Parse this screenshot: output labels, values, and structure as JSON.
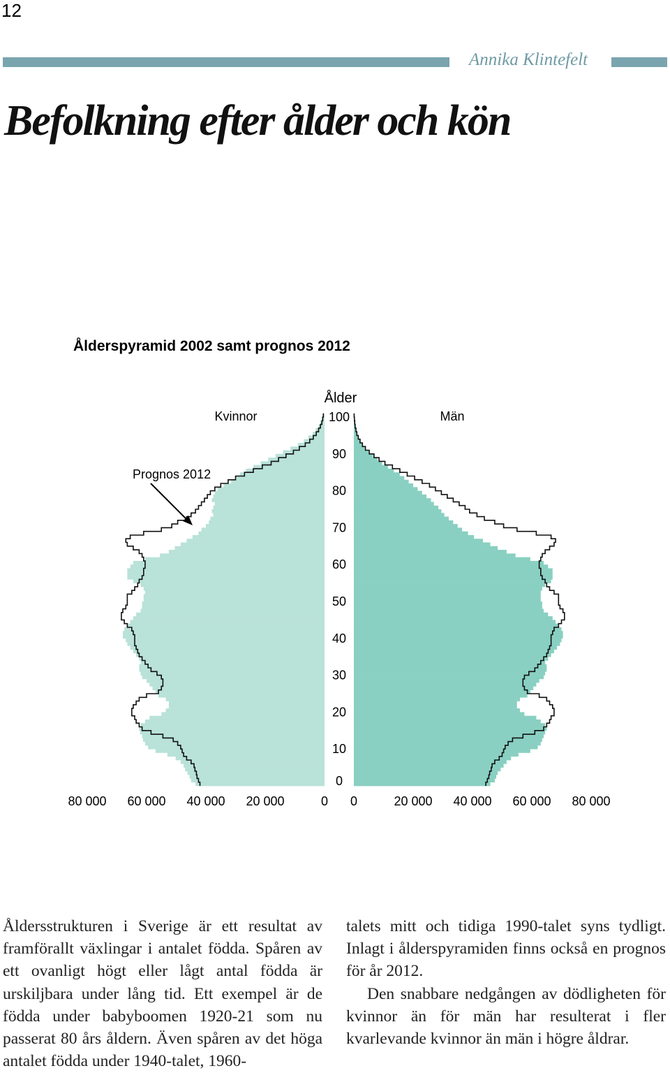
{
  "header": {
    "page_number": "12",
    "author": "Annika Klintefelt",
    "accent_color": "#7aa5ae"
  },
  "article": {
    "title": "Befolkning efter ålder och kön"
  },
  "chart_data": {
    "type": "population-pyramid",
    "title": "Ålderspyramid 2002 samt prognos 2012",
    "y_axis_label": "Ålder",
    "left_label": "Kvinnor",
    "right_label": "Män",
    "annotation": "Prognos 2012",
    "y_ticks": [
      "0",
      "10",
      "20",
      "30",
      "40",
      "50",
      "60",
      "70",
      "80",
      "90",
      "100"
    ],
    "x_ticks_left": [
      "80 000",
      "60 000",
      "40 000",
      "20 000",
      "0"
    ],
    "x_ticks_right": [
      "0",
      "20 000",
      "40 000",
      "60 000",
      "80 000"
    ],
    "x_range": [
      0,
      80000
    ],
    "y_range": [
      0,
      100
    ],
    "colors": {
      "kvinnor": "#b9e2d8",
      "man": "#89d0c2",
      "prognos_outline": "#111111"
    },
    "series": [
      {
        "name": "Kvinnor",
        "values": [
          43500,
          45000,
          45500,
          46200,
          47000,
          47500,
          48500,
          50200,
          53000,
          57000,
          59500,
          60500,
          61200,
          61500,
          62200,
          62500,
          62000,
          60500,
          59000,
          55000,
          53500,
          52500,
          52500,
          53500,
          56000,
          57000,
          58000,
          59000,
          60000,
          61500,
          62000,
          62500,
          62500,
          62000,
          62500,
          63500,
          64500,
          65500,
          66500,
          67000,
          68000,
          68000,
          67500,
          66500,
          65500,
          64500,
          63500,
          62000,
          61500,
          61500,
          61000,
          61000,
          60500,
          61000,
          62000,
          64500,
          66500,
          66500,
          66500,
          65500,
          64500,
          60500,
          55500,
          52500,
          50500,
          48500,
          46500,
          44500,
          42500,
          41500,
          40000,
          39000,
          38500,
          37500,
          38000,
          37500,
          37000,
          38000,
          37500,
          37000,
          36000,
          34000,
          31500,
          30000,
          28500,
          26500,
          24000,
          21500,
          19000,
          16500,
          14000,
          11500,
          9000,
          7000,
          5500,
          4000,
          3000,
          2000,
          1400,
          900,
          500
        ]
      },
      {
        "name": "Män",
        "values": [
          46000,
          47500,
          48000,
          48500,
          49500,
          50500,
          51500,
          53000,
          55500,
          59500,
          62000,
          63000,
          63500,
          64000,
          64500,
          65000,
          64500,
          63000,
          61500,
          57500,
          56000,
          55000,
          55000,
          56000,
          58500,
          59500,
          60500,
          61500,
          62500,
          64000,
          64500,
          65000,
          65000,
          64500,
          65500,
          66500,
          67500,
          68500,
          69500,
          70000,
          70500,
          70500,
          70000,
          69000,
          68000,
          67000,
          65500,
          64000,
          63500,
          63500,
          63000,
          63000,
          63000,
          63500,
          64500,
          66500,
          67000,
          67000,
          67000,
          65500,
          64000,
          59500,
          54500,
          51500,
          48500,
          46000,
          43500,
          40500,
          38500,
          36500,
          35000,
          33500,
          32000,
          30500,
          29500,
          28500,
          27000,
          26000,
          24500,
          23000,
          21500,
          20000,
          18500,
          17000,
          15500,
          13500,
          11500,
          9500,
          8000,
          6500,
          5000,
          3700,
          2800,
          2000,
          1400,
          900,
          600,
          400,
          250,
          150,
          80
        ]
      },
      {
        "name": "Prognos 2012",
        "kvinnor": [
          42000,
          42500,
          43000,
          43200,
          43700,
          44000,
          45000,
          46500,
          47500,
          48000,
          48500,
          49500,
          51000,
          54500,
          58500,
          61500,
          62500,
          63500,
          64000,
          65000,
          65000,
          64500,
          63500,
          62500,
          60000,
          56000,
          55000,
          54500,
          54500,
          55000,
          56500,
          58500,
          59500,
          60500,
          61500,
          62500,
          63000,
          63500,
          64000,
          64000,
          64000,
          64500,
          65000,
          66500,
          67500,
          68500,
          68500,
          68000,
          67000,
          66500,
          66500,
          66500,
          65000,
          64000,
          63000,
          62500,
          61500,
          61000,
          61000,
          60500,
          60500,
          61000,
          61500,
          62500,
          64500,
          66500,
          67000,
          65500,
          61000,
          55000,
          51500,
          49500,
          46500,
          45000,
          43500,
          42500,
          41500,
          40500,
          39500,
          38500,
          37000,
          35000,
          32500,
          30000,
          27000,
          24000,
          21000,
          18000,
          15500,
          13000,
          10500,
          8500,
          6500,
          5000,
          3800,
          2800,
          2000,
          1400,
          900,
          600,
          400
        ],
        "man": [
          44500,
          45000,
          45500,
          45800,
          46300,
          46600,
          47500,
          49000,
          50000,
          50500,
          51000,
          52000,
          53500,
          57000,
          61000,
          64000,
          65000,
          66000,
          66500,
          67500,
          67500,
          67000,
          66000,
          65000,
          62500,
          58500,
          57500,
          57000,
          57000,
          57500,
          59000,
          61000,
          62000,
          63000,
          64000,
          65000,
          65500,
          66000,
          66500,
          66500,
          66500,
          67000,
          67500,
          69000,
          70000,
          71000,
          71000,
          70500,
          69500,
          69000,
          69000,
          69000,
          67500,
          66000,
          65000,
          64500,
          63500,
          63000,
          63000,
          62500,
          62500,
          63000,
          63500,
          64500,
          66000,
          67500,
          68000,
          66500,
          61500,
          55000,
          50500,
          47500,
          44000,
          41500,
          39000,
          37500,
          35500,
          33500,
          31500,
          29500,
          27500,
          25500,
          23000,
          20500,
          18000,
          15500,
          13000,
          10500,
          8500,
          6800,
          5200,
          3900,
          2900,
          2100,
          1500,
          1000,
          700,
          450,
          300,
          180,
          100
        ]
      }
    ]
  },
  "body": {
    "col1": "Åldersstrukturen i Sverige är ett resultat av framförallt växlingar i antalet födda. Spåren av ett ovanligt högt eller lågt antal födda är urskiljbara under lång tid. Ett exempel är de födda under babyboomen 1920-21 som nu passerat 80 års åldern. Även spåren av det höga antalet födda under 1940-talet, 1960-",
    "col2_p1": "talets mitt och tidiga 1990-talet syns tydligt. Inlagt i ålderspyramiden finns också en prognos för år 2012.",
    "col2_p2": "Den snabbare nedgången av dödligheten för kvinnor än för män har resulterat i fler kvarlevande kvinnor än män i högre åldrar."
  }
}
